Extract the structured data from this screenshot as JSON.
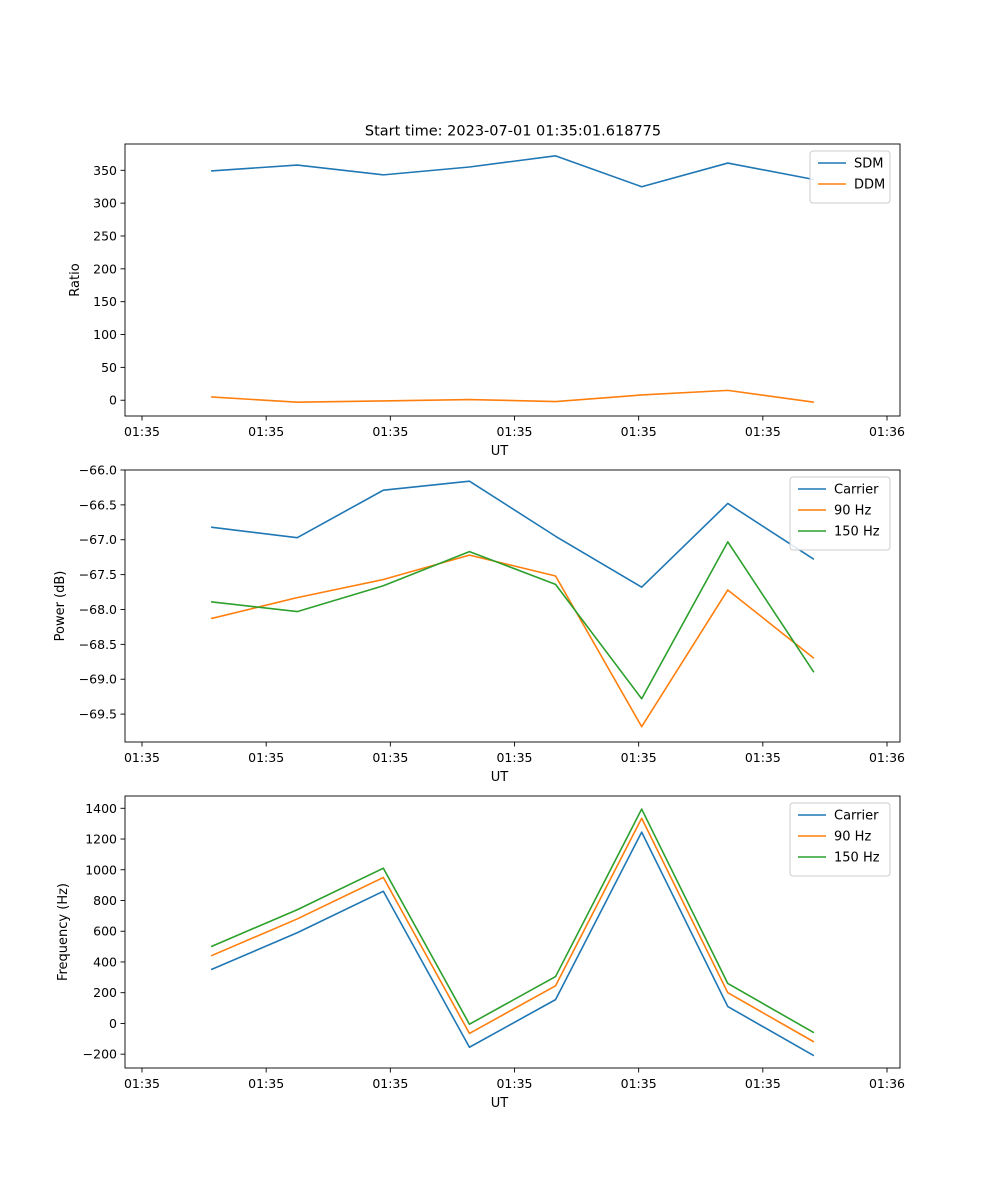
{
  "figure": {
    "title": "Start time: 2023-07-01 01:35:01.618775"
  },
  "chart_data": [
    {
      "type": "line",
      "title": "Start time: 2023-07-01 01:35:01.618775",
      "xlabel": "UT",
      "ylabel": "Ratio",
      "x_ticks": [
        "01:35",
        "01:35",
        "01:35",
        "01:35",
        "01:35",
        "01:35",
        "01:36"
      ],
      "xlim": [
        -1,
        8
      ],
      "x": [
        0,
        1,
        2,
        3,
        4,
        5,
        6,
        7
      ],
      "ylim": [
        -24,
        390
      ],
      "y_ticks": [
        0,
        50,
        100,
        150,
        200,
        250,
        300,
        350
      ],
      "legend_position": "top-right",
      "series": [
        {
          "name": "SDM",
          "color": "#1f77b4",
          "values": [
            349,
            358,
            343,
            355,
            372,
            325,
            361,
            336
          ]
        },
        {
          "name": "DDM",
          "color": "#ff7f0e",
          "values": [
            5,
            -3,
            -1,
            1,
            -2,
            8,
            15,
            -3
          ]
        }
      ]
    },
    {
      "type": "line",
      "title": "",
      "xlabel": "UT",
      "ylabel": "Power (dB)",
      "x_ticks": [
        "01:35",
        "01:35",
        "01:35",
        "01:35",
        "01:35",
        "01:35",
        "01:36"
      ],
      "xlim": [
        -1,
        8
      ],
      "x": [
        0,
        1,
        2,
        3,
        4,
        5,
        6,
        7
      ],
      "ylim": [
        -69.9,
        -66.0
      ],
      "y_ticks": [
        -66.0,
        -66.5,
        -67.0,
        -67.5,
        -68.0,
        -68.5,
        -69.0,
        -69.5
      ],
      "legend_position": "top-right",
      "series": [
        {
          "name": "Carrier",
          "color": "#1f77b4",
          "values": [
            -66.82,
            -66.97,
            -66.29,
            -66.16,
            -66.95,
            -67.68,
            -66.48,
            -67.28
          ]
        },
        {
          "name": "90 Hz",
          "color": "#ff7f0e",
          "values": [
            -68.13,
            -67.83,
            -67.57,
            -67.22,
            -67.52,
            -69.68,
            -67.72,
            -68.7
          ]
        },
        {
          "name": "150 Hz",
          "color": "#2ca02c",
          "values": [
            -67.89,
            -68.03,
            -67.66,
            -67.17,
            -67.64,
            -69.28,
            -67.03,
            -68.9
          ]
        }
      ]
    },
    {
      "type": "line",
      "title": "",
      "xlabel": "UT",
      "ylabel": "Frequency (Hz)",
      "x_ticks": [
        "01:35",
        "01:35",
        "01:35",
        "01:35",
        "01:35",
        "01:35",
        "01:36"
      ],
      "xlim": [
        -1,
        8
      ],
      "x": [
        0,
        1,
        2,
        3,
        4,
        5,
        6,
        7
      ],
      "ylim": [
        -290,
        1480
      ],
      "y_ticks": [
        -200,
        0,
        200,
        400,
        600,
        800,
        1000,
        1200,
        1400
      ],
      "legend_position": "top-right",
      "series": [
        {
          "name": "Carrier",
          "color": "#1f77b4",
          "values": [
            350,
            590,
            860,
            -155,
            155,
            1245,
            110,
            -210
          ]
        },
        {
          "name": "90 Hz",
          "color": "#ff7f0e",
          "values": [
            440,
            680,
            950,
            -65,
            245,
            1335,
            200,
            -120
          ]
        },
        {
          "name": "150 Hz",
          "color": "#2ca02c",
          "values": [
            500,
            740,
            1010,
            -5,
            305,
            1395,
            260,
            -60
          ]
        }
      ]
    }
  ]
}
